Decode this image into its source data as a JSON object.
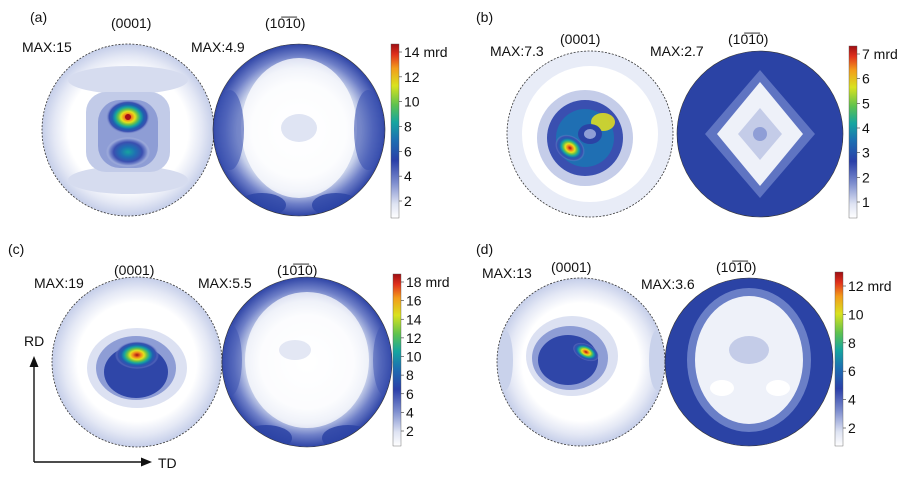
{
  "figure": {
    "panels": [
      {
        "label": "(a)",
        "basal": {
          "plane": "(0001)",
          "max_label": "MAX:15",
          "max": 15
        },
        "prism": {
          "plane": "(10̅1̅0)",
          "max_label": "MAX:4.9",
          "max": 4.9
        },
        "colorbar": {
          "ticks": [
            "2",
            "4",
            "6",
            "8",
            "10",
            "12",
            "14 mrd"
          ]
        }
      },
      {
        "label": "(b)",
        "basal": {
          "plane": "(0001)",
          "max_label": "MAX:7.3",
          "max": 7.3
        },
        "prism": {
          "plane": "(10̅1̅0)",
          "max_label": "MAX:2.7",
          "max": 2.7
        },
        "colorbar": {
          "ticks": [
            "1",
            "2",
            "3",
            "4",
            "5",
            "6",
            "7 mrd"
          ]
        }
      },
      {
        "label": "(c)",
        "basal": {
          "plane": "(0001)",
          "max_label": "MAX:19",
          "max": 19
        },
        "prism": {
          "plane": "(10̅1̅0)",
          "max_label": "MAX:5.5",
          "max": 5.5
        },
        "colorbar": {
          "ticks": [
            "2",
            "4",
            "6",
            "8",
            "10",
            "12",
            "14",
            "16",
            "18 mrd"
          ]
        }
      },
      {
        "label": "(d)",
        "basal": {
          "plane": "(0001)",
          "max_label": "MAX:13",
          "max": 13
        },
        "prism": {
          "plane": "(10̅1̅0)",
          "max_label": "MAX:3.6",
          "max": 3.6
        },
        "colorbar": {
          "ticks": [
            "2",
            "4",
            "6",
            "8",
            "10",
            "12 mrd"
          ]
        }
      }
    ],
    "axes": {
      "vertical": "RD",
      "horizontal": "TD"
    },
    "colormap": [
      "#f4f6fb",
      "#c9d2eb",
      "#8f9ed6",
      "#3a4fb0",
      "#1f6fb3",
      "#16a3a0",
      "#6cc24a",
      "#e6e21c",
      "#f2861c",
      "#d7191c",
      "#a50f15"
    ]
  }
}
